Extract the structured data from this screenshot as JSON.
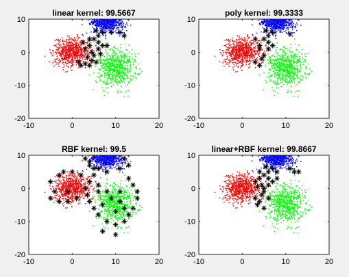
{
  "figure": {
    "background": "#f0f0f0"
  },
  "chart_data": [
    {
      "type": "scatter",
      "title": "linear kernel: 99.5667",
      "xlim": [
        -10,
        20
      ],
      "ylim": [
        -20,
        10
      ],
      "xticks": [
        "-10",
        "0",
        "10",
        "20"
      ],
      "yticks": [
        "-20",
        "-10",
        "0",
        "10"
      ],
      "grid": false,
      "clusters": [
        {
          "color": "#ff0000",
          "center": [
            0,
            0
          ],
          "spread": [
            2.1,
            2.1
          ],
          "count": 700
        },
        {
          "color": "#0000ff",
          "center": [
            8,
            9
          ],
          "spread": [
            2.0,
            1.5
          ],
          "count": 700
        },
        {
          "color": "#00ff00",
          "center": [
            10,
            -4.5
          ],
          "spread": [
            2.2,
            2.8
          ],
          "count": 700
        }
      ],
      "support_vectors": [
        [
          3,
          1
        ],
        [
          4,
          2
        ],
        [
          5,
          4
        ],
        [
          6,
          3
        ],
        [
          7,
          2
        ],
        [
          3.5,
          -1.5
        ],
        [
          4.5,
          -2.5
        ],
        [
          5.5,
          -3
        ],
        [
          4,
          -4
        ],
        [
          3,
          -3.5
        ],
        [
          2,
          -4
        ],
        [
          6,
          5
        ],
        [
          7,
          6
        ],
        [
          5.5,
          6.5
        ],
        [
          9,
          6
        ],
        [
          11,
          6
        ],
        [
          12,
          5
        ],
        [
          4.5,
          0
        ],
        [
          5,
          -1
        ],
        [
          6,
          1
        ],
        [
          2.5,
          3
        ],
        [
          1.5,
          -3
        ],
        [
          8,
          2
        ],
        [
          6.5,
          -0.5
        ],
        [
          4,
          4
        ]
      ]
    },
    {
      "type": "scatter",
      "title": "poly kernel: 99.3333",
      "xlim": [
        -10,
        20
      ],
      "ylim": [
        -20,
        10
      ],
      "xticks": [
        "-10",
        "0",
        "10",
        "20"
      ],
      "yticks": [
        "-20",
        "-10",
        "0",
        "10"
      ],
      "grid": false,
      "clusters": [
        {
          "color": "#ff0000",
          "center": [
            0,
            0
          ],
          "spread": [
            2.1,
            2.1
          ],
          "count": 700
        },
        {
          "color": "#0000ff",
          "center": [
            8,
            9
          ],
          "spread": [
            2.0,
            1.5
          ],
          "count": 700
        },
        {
          "color": "#00ff00",
          "center": [
            10,
            -4.5
          ],
          "spread": [
            2.2,
            2.8
          ],
          "count": 700
        }
      ],
      "support_vectors": [
        [
          4,
          2
        ],
        [
          5,
          4
        ],
        [
          6,
          3
        ],
        [
          4.5,
          -2
        ],
        [
          4,
          -4
        ],
        [
          6,
          5
        ],
        [
          7,
          6
        ],
        [
          5.5,
          6.5
        ],
        [
          11,
          5.5
        ],
        [
          4,
          1
        ],
        [
          3,
          -3
        ],
        [
          5,
          -1
        ],
        [
          7,
          2
        ],
        [
          6,
          1
        ],
        [
          3,
          4
        ]
      ]
    },
    {
      "type": "scatter",
      "title": "RBF kernel: 99.5",
      "xlim": [
        -10,
        20
      ],
      "ylim": [
        -20,
        10
      ],
      "xticks": [
        "-10",
        "0",
        "10",
        "20"
      ],
      "yticks": [
        "-20",
        "-10",
        "0",
        "10"
      ],
      "grid": false,
      "clusters": [
        {
          "color": "#ff0000",
          "center": [
            0,
            0
          ],
          "spread": [
            2.1,
            2.1
          ],
          "count": 700
        },
        {
          "color": "#0000ff",
          "center": [
            8,
            9
          ],
          "spread": [
            2.0,
            1.5
          ],
          "count": 700
        },
        {
          "color": "#00ff00",
          "center": [
            10,
            -4.5
          ],
          "spread": [
            2.2,
            2.8
          ],
          "count": 700
        }
      ],
      "support_vectors": [
        [
          -5,
          2
        ],
        [
          -4,
          -1
        ],
        [
          -3,
          4
        ],
        [
          -2,
          5
        ],
        [
          0,
          5
        ],
        [
          2,
          4
        ],
        [
          -5,
          -3
        ],
        [
          -3,
          -4
        ],
        [
          -1,
          -4
        ],
        [
          1,
          -3
        ],
        [
          -1,
          -1
        ],
        [
          3,
          0
        ],
        [
          4,
          2
        ],
        [
          5,
          4
        ],
        [
          3.5,
          -2
        ],
        [
          4,
          -4
        ],
        [
          4,
          7
        ],
        [
          5,
          10
        ],
        [
          3,
          9
        ],
        [
          4,
          11
        ],
        [
          7,
          12
        ],
        [
          9,
          12
        ],
        [
          11,
          11
        ],
        [
          12,
          9
        ],
        [
          13,
          7
        ],
        [
          11,
          6
        ],
        [
          8,
          5
        ],
        [
          6,
          6
        ],
        [
          5,
          6
        ],
        [
          4,
          8
        ],
        [
          13,
          3
        ],
        [
          14,
          1
        ],
        [
          15,
          -1
        ],
        [
          15,
          -3
        ],
        [
          14,
          -6
        ],
        [
          13,
          -8
        ],
        [
          12,
          -10
        ],
        [
          10,
          -11
        ],
        [
          8,
          -10
        ],
        [
          6,
          -8
        ],
        [
          5,
          -6
        ],
        [
          7,
          -5
        ],
        [
          9,
          -3
        ],
        [
          11,
          -4
        ],
        [
          10,
          -7
        ],
        [
          12,
          -6
        ],
        [
          7,
          -13
        ],
        [
          10,
          -14
        ],
        [
          6,
          -1
        ],
        [
          8,
          -1
        ],
        [
          11,
          -1
        ],
        [
          6,
          1
        ]
      ]
    },
    {
      "type": "scatter",
      "title": "linear+RBF kernel: 99.8667",
      "xlim": [
        -10,
        20
      ],
      "ylim": [
        -20,
        10
      ],
      "xticks": [
        "-10",
        "0",
        "10",
        "20"
      ],
      "yticks": [
        "-20",
        "-10",
        "0",
        "10"
      ],
      "grid": false,
      "clusters": [
        {
          "color": "#ff0000",
          "center": [
            0,
            0
          ],
          "spread": [
            2.1,
            2.1
          ],
          "count": 700
        },
        {
          "color": "#0000ff",
          "center": [
            8,
            9
          ],
          "spread": [
            2.0,
            1.5
          ],
          "count": 700
        },
        {
          "color": "#00ff00",
          "center": [
            10,
            -4.5
          ],
          "spread": [
            2.2,
            2.8
          ],
          "count": 700
        }
      ],
      "support_vectors": [
        [
          3,
          2
        ],
        [
          4,
          3
        ],
        [
          5,
          4
        ],
        [
          6,
          3
        ],
        [
          7,
          2
        ],
        [
          8,
          3
        ],
        [
          6,
          5
        ],
        [
          7,
          6
        ],
        [
          5.5,
          6.5
        ],
        [
          11,
          6
        ],
        [
          12,
          5
        ],
        [
          13,
          5
        ],
        [
          4.5,
          -2
        ],
        [
          4,
          -4
        ],
        [
          3.5,
          -5
        ],
        [
          3,
          -3
        ],
        [
          5,
          -1
        ],
        [
          6,
          1
        ],
        [
          5,
          0
        ],
        [
          4.5,
          1
        ],
        [
          3.5,
          0.5
        ],
        [
          6,
          -3
        ],
        [
          5,
          -6
        ],
        [
          8,
          5
        ],
        [
          4,
          5
        ]
      ]
    }
  ]
}
